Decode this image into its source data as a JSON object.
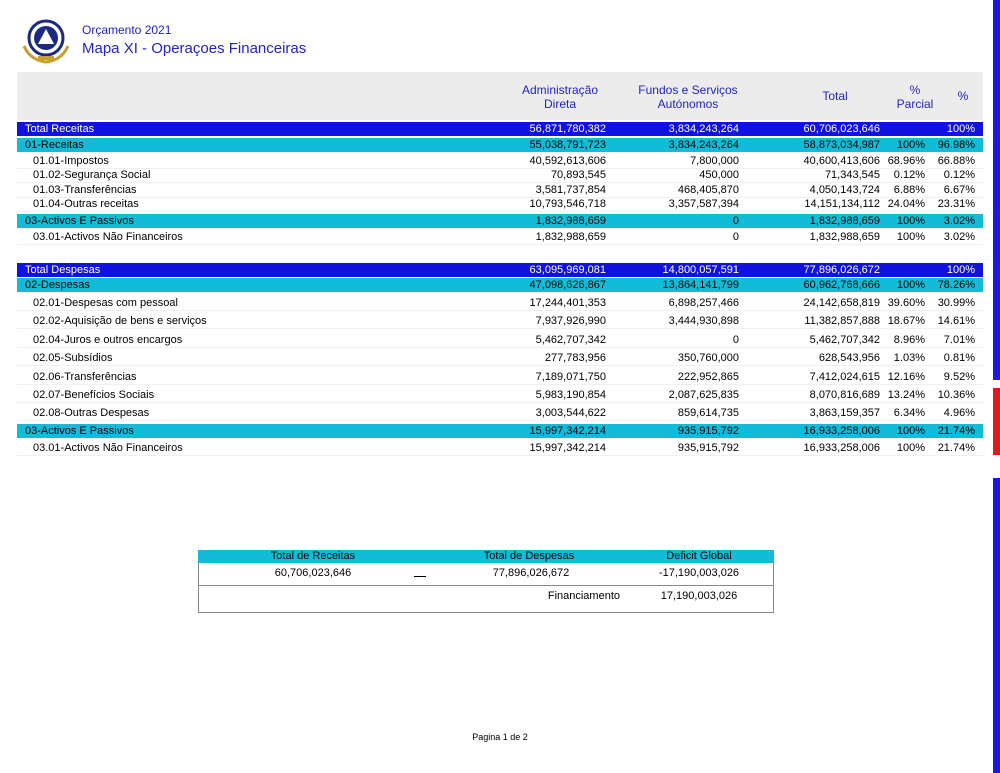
{
  "header": {
    "subtitle": "Orçamento 2021",
    "title": "Mapa XI - Operaçoes Financeiras"
  },
  "columns": {
    "adm": "Administração Direta",
    "fundos": "Fundos e Serviços Autónomos",
    "total": "Total",
    "parcial": "% Parcial",
    "pct": "%"
  },
  "receitas": {
    "total": {
      "label": "Total Receitas",
      "adm": "56,871,780,382",
      "fundos": "3,834,243,264",
      "total": "60,706,023,646",
      "pct": "100%"
    },
    "groups": [
      {
        "header": {
          "label": "01-Receitas",
          "adm": "55,038,791,723",
          "fundos": "3,834,243,264",
          "total": "58,873,034,987",
          "parcial": "100%",
          "pct": "96.98%"
        },
        "items": [
          {
            "label": "01.01-Impostos",
            "adm": "40,592,613,606",
            "fundos": "7,800,000",
            "total": "40,600,413,606",
            "parcial": "68.96%",
            "pct": "66.88%"
          },
          {
            "label": "01.02-Segurança Social",
            "adm": "70,893,545",
            "fundos": "450,000",
            "total": "71,343,545",
            "parcial": "0.12%",
            "pct": "0.12%"
          },
          {
            "label": "01.03-Transferências",
            "adm": "3,581,737,854",
            "fundos": "468,405,870",
            "total": "4,050,143,724",
            "parcial": "6.88%",
            "pct": "6.67%"
          },
          {
            "label": "01.04-Outras receitas",
            "adm": "10,793,546,718",
            "fundos": "3,357,587,394",
            "total": "14,151,134,112",
            "parcial": "24.04%",
            "pct": "23.31%"
          }
        ]
      },
      {
        "header": {
          "label": "03-Activos E Passivos",
          "adm": "1,832,988,659",
          "fundos": "0",
          "total": "1,832,988,659",
          "parcial": "100%",
          "pct": "3.02%"
        },
        "items": [
          {
            "label": "03.01-Activos Não Financeiros",
            "adm": "1,832,988,659",
            "fundos": "0",
            "total": "1,832,988,659",
            "parcial": "100%",
            "pct": "3.02%"
          }
        ]
      }
    ]
  },
  "despesas": {
    "total": {
      "label": "Total Despesas",
      "adm": "63,095,969,081",
      "fundos": "14,800,057,591",
      "total": "77,896,026,672",
      "pct": "100%"
    },
    "groups": [
      {
        "header": {
          "label": "02-Despesas",
          "adm": "47,098,626,867",
          "fundos": "13,864,141,799",
          "total": "60,962,768,666",
          "parcial": "100%",
          "pct": "78.26%"
        },
        "items": [
          {
            "label": "02.01-Despesas com pessoal",
            "adm": "17,244,401,353",
            "fundos": "6,898,257,466",
            "total": "24,142,658,819",
            "parcial": "39.60%",
            "pct": "30.99%"
          },
          {
            "label": "02.02-Aquisição de bens e serviços",
            "adm": "7,937,926,990",
            "fundos": "3,444,930,898",
            "total": "11,382,857,888",
            "parcial": "18.67%",
            "pct": "14.61%"
          },
          {
            "label": "02.04-Juros e outros encargos",
            "adm": "5,462,707,342",
            "fundos": "0",
            "total": "5,462,707,342",
            "parcial": "8.96%",
            "pct": "7.01%"
          },
          {
            "label": "02.05-Subsídios",
            "adm": "277,783,956",
            "fundos": "350,760,000",
            "total": "628,543,956",
            "parcial": "1.03%",
            "pct": "0.81%"
          },
          {
            "label": "02.06-Transferências",
            "adm": "7,189,071,750",
            "fundos": "222,952,865",
            "total": "7,412,024,615",
            "parcial": "12.16%",
            "pct": "9.52%"
          },
          {
            "label": "02.07-Benefícios Sociais",
            "adm": "5,983,190,854",
            "fundos": "2,087,625,835",
            "total": "8,070,816,689",
            "parcial": "13.24%",
            "pct": "10.36%"
          },
          {
            "label": "02.08-Outras Despesas",
            "adm": "3,003,544,622",
            "fundos": "859,614,735",
            "total": "3,863,159,357",
            "parcial": "6.34%",
            "pct": "4.96%"
          }
        ]
      },
      {
        "header": {
          "label": "03-Activos E Passivos",
          "adm": "15,997,342,214",
          "fundos": "935,915,792",
          "total": "16,933,258,006",
          "parcial": "100%",
          "pct": "21.74%"
        },
        "items": [
          {
            "label": "03.01-Activos Não Financeiros",
            "adm": "15,997,342,214",
            "fundos": "935,915,792",
            "total": "16,933,258,006",
            "parcial": "100%",
            "pct": "21.74%"
          }
        ]
      }
    ]
  },
  "summary": {
    "headers": [
      "Total de Receitas",
      "Total de Despesas",
      "Deficit Global"
    ],
    "values": [
      "60,706,023,646",
      "77,896,026,672",
      "-17,190,003,026"
    ],
    "financiamento": {
      "label": "Financiamento",
      "value": "17,190,003,026"
    }
  },
  "footer": "Pagina 1 de 2"
}
